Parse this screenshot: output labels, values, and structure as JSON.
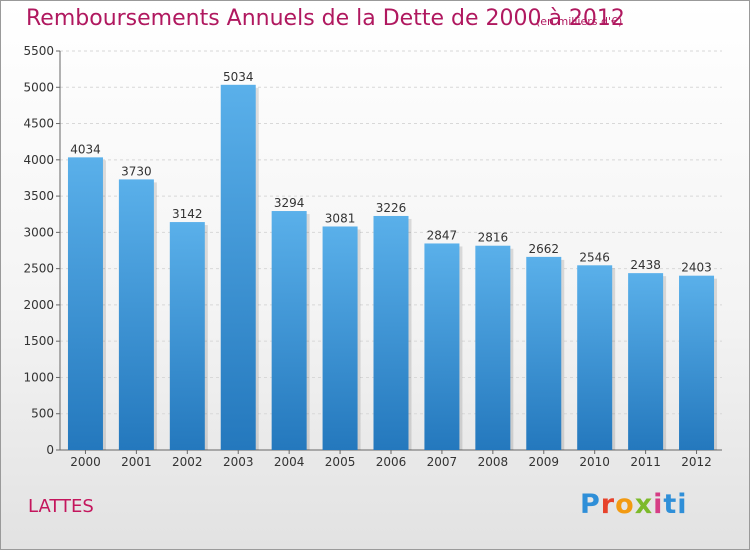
{
  "title": "Remboursements Annuels de la Dette de 2000 à 2012",
  "unit": "(en milliers d'€)",
  "commune": "LATTES",
  "logo": "Proxiti",
  "colors": {
    "bar_top": "#5ab0ea",
    "bar_bottom": "#2478bd",
    "title": "#b0185f",
    "grid": "#d8d8d8"
  },
  "chart_data": {
    "type": "bar",
    "categories": [
      "2000",
      "2001",
      "2002",
      "2003",
      "2004",
      "2005",
      "2006",
      "2007",
      "2008",
      "2009",
      "2010",
      "2011",
      "2012"
    ],
    "values": [
      4034,
      3730,
      3142,
      5034,
      3294,
      3081,
      3226,
      2847,
      2816,
      2662,
      2546,
      2438,
      2403
    ],
    "ylim": [
      0,
      5500
    ],
    "yticks": [
      0,
      500,
      1000,
      1500,
      2000,
      2500,
      3000,
      3500,
      4000,
      4500,
      5000,
      5500
    ],
    "grid": true,
    "xlabel": "",
    "ylabel": ""
  }
}
